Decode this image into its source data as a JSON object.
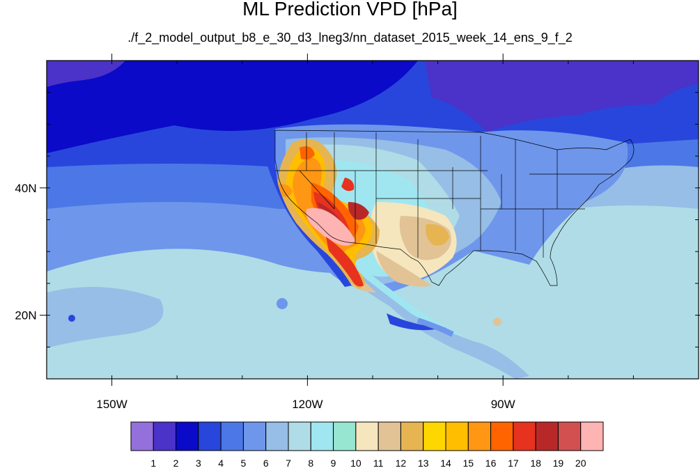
{
  "title": "ML Prediction VPD [hPa]",
  "subtitle": "./f_2_model_output_b8_e_30_d3_lneg3/nn_dataset_2015_week_14_ens_9_f_2",
  "map": {
    "lon_range": [
      -160,
      -60
    ],
    "lat_range": [
      10,
      60
    ],
    "lon_ticks": [
      {
        "value": -150,
        "label": "150W"
      },
      {
        "value": -120,
        "label": "120W"
      },
      {
        "value": -90,
        "label": "90W"
      }
    ],
    "lat_ticks": [
      {
        "value": 40,
        "label": "40N"
      },
      {
        "value": 20,
        "label": "20N"
      }
    ]
  },
  "colorbar": {
    "labels": [
      "1",
      "2",
      "3",
      "4",
      "5",
      "6",
      "7",
      "8",
      "9",
      "10",
      "11",
      "12",
      "13",
      "14",
      "15",
      "16",
      "17",
      "18",
      "19",
      "20"
    ],
    "colors": [
      "#9370db",
      "#4b32c8",
      "#0a0ac8",
      "#2846dc",
      "#4b78e6",
      "#6e96eb",
      "#96bee6",
      "#afdce6",
      "#a0e6f0",
      "#96e6d2",
      "#f5e6be",
      "#e1c396",
      "#e6b450",
      "#ffd700",
      "#ffbe00",
      "#ff9614",
      "#ff6400",
      "#e6321e",
      "#b92828",
      "#d25050",
      "#ffb4b4"
    ]
  }
}
